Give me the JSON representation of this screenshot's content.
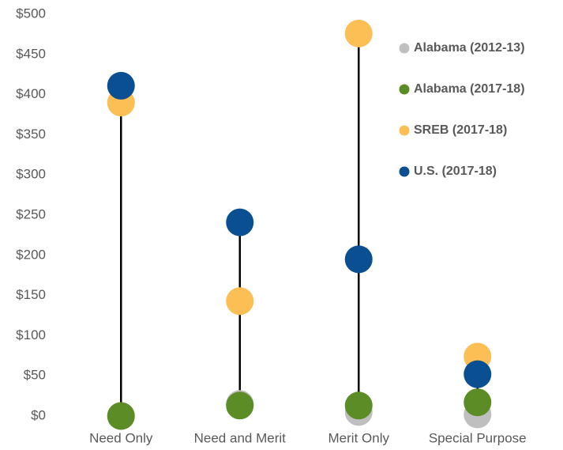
{
  "chart_data": {
    "type": "dot",
    "categories": [
      "Need Only",
      "Need and Merit",
      "Merit Only",
      "Special Purpose"
    ],
    "series": [
      {
        "name": "Alabama (2012-13)",
        "color": "#bfbfbf",
        "values": [
          0,
          15,
          5,
          2
        ]
      },
      {
        "name": "Alabama (2017-18)",
        "color": "#5b8c26",
        "values": [
          0,
          13,
          13,
          17
        ]
      },
      {
        "name": "SREB (2017-18)",
        "color": "#fbbf56",
        "values": [
          390,
          143,
          476,
          74
        ]
      },
      {
        "name": "U.S. (2017-18)",
        "color": "#0b4f93",
        "values": [
          411,
          241,
          195,
          52
        ]
      }
    ],
    "ylim": [
      0,
      500
    ],
    "yticks": [
      {
        "value": 0,
        "label": "$0"
      },
      {
        "value": 50,
        "label": "$50"
      },
      {
        "value": 100,
        "label": "$100"
      },
      {
        "value": 150,
        "label": "$150"
      },
      {
        "value": 200,
        "label": "$200"
      },
      {
        "value": 250,
        "label": "$250"
      },
      {
        "value": 300,
        "label": "$300"
      },
      {
        "value": 350,
        "label": "$350"
      },
      {
        "value": 400,
        "label": "$400"
      },
      {
        "value": 450,
        "label": "$450"
      },
      {
        "value": 500,
        "label": "$500"
      }
    ],
    "legend": "right"
  }
}
